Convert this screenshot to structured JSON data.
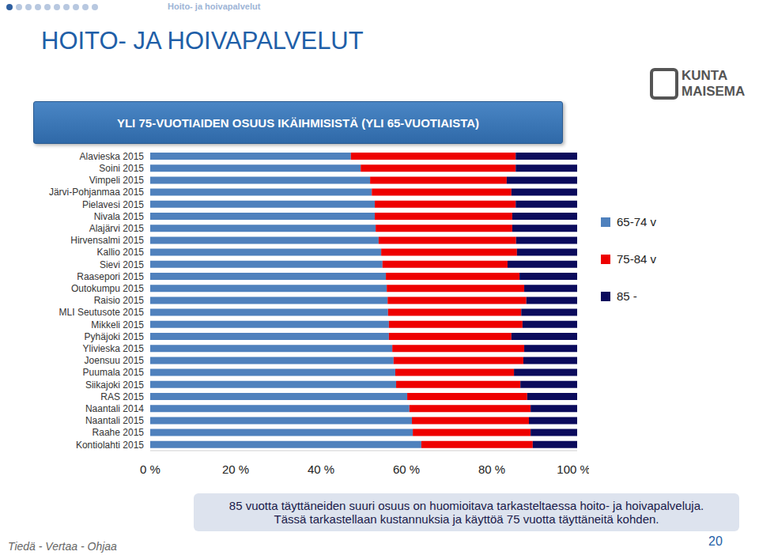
{
  "page": {
    "section": "Hoito- ja hoivapalvelut",
    "heading": "HOITO- JA HOIVAPALVELUT",
    "footer": "Tiedä - Vertaa - Ohjaa",
    "page_number": "20",
    "logo": [
      "KUNTA",
      "MAISEMA"
    ]
  },
  "chart_data": {
    "type": "bar",
    "orientation": "horizontal",
    "stacked": true,
    "grid": false,
    "legend": "right",
    "title": "YLI 75-VUOTIAIDEN OSUUS IKÄIHMISISTÄ (YLI 65-VUOTIAISTA)",
    "annotations": [
      "85 vuotta täyttäneiden suuri osuus on huomioitava tarkasteltaessa hoito- ja hoivapalveluja.",
      "Tässä tarkastellaan kustannuksia ja käyttöä 75 vuotta täyttäneitä kohden."
    ],
    "categories": [
      "Alavieska 2015",
      "Soini 2015",
      "Vimpeli 2015",
      "Järvi-Pohjanmaa 2015",
      "Pielavesi 2015",
      "Nivala 2015",
      "Alajärvi 2015",
      "Hirvensalmi 2015",
      "Kallio 2015",
      "Sievi 2015",
      "Raasepori 2015",
      "Outokumpu 2015",
      "Raisio 2015",
      "MLI Seutusote 2015",
      "Mikkeli 2015",
      "Pyhäjoki 2015",
      "Ylivieska 2015",
      "Joensuu 2015",
      "Puumala 2015",
      "Siikajoki 2015",
      "RAS 2015",
      "Naantali 2014",
      "Naantali 2015",
      "Raahe 2015",
      "Kontiolahti 2015"
    ],
    "series": [
      {
        "name": "65-74 v",
        "color": "#4f81bd",
        "values": [
          47.0,
          49.3,
          51.5,
          51.9,
          52.6,
          52.6,
          52.8,
          53.5,
          54.1,
          54.4,
          55.2,
          55.4,
          55.6,
          55.7,
          55.9,
          55.9,
          56.7,
          57.0,
          57.4,
          57.6,
          60.2,
          60.7,
          61.3,
          61.5,
          63.5
        ]
      },
      {
        "name": "75-84 v",
        "color": "#ee0000",
        "values": [
          38.6,
          36.3,
          32.0,
          32.7,
          33.0,
          32.2,
          32.0,
          32.2,
          31.8,
          29.3,
          31.3,
          32.2,
          32.5,
          31.2,
          31.3,
          28.7,
          30.9,
          30.4,
          27.8,
          29.1,
          28.1,
          28.4,
          27.4,
          27.6,
          26.1
        ]
      },
      {
        "name": "85 -",
        "color": "#0b0b5c",
        "values": [
          14.4,
          14.4,
          16.5,
          15.4,
          14.4,
          15.2,
          15.2,
          14.3,
          14.1,
          16.3,
          13.5,
          12.4,
          11.9,
          13.1,
          12.8,
          15.4,
          12.4,
          12.6,
          14.8,
          13.3,
          11.7,
          10.9,
          11.3,
          10.9,
          10.4
        ]
      }
    ],
    "xlim": [
      0,
      100
    ],
    "xticks": [
      {
        "value": 0,
        "label": "0 %"
      },
      {
        "value": 20,
        "label": "20 %"
      },
      {
        "value": 40,
        "label": "40 %"
      },
      {
        "value": 60,
        "label": "60 %"
      },
      {
        "value": 80,
        "label": "80 %"
      },
      {
        "value": 100,
        "label": "100 %"
      }
    ]
  }
}
